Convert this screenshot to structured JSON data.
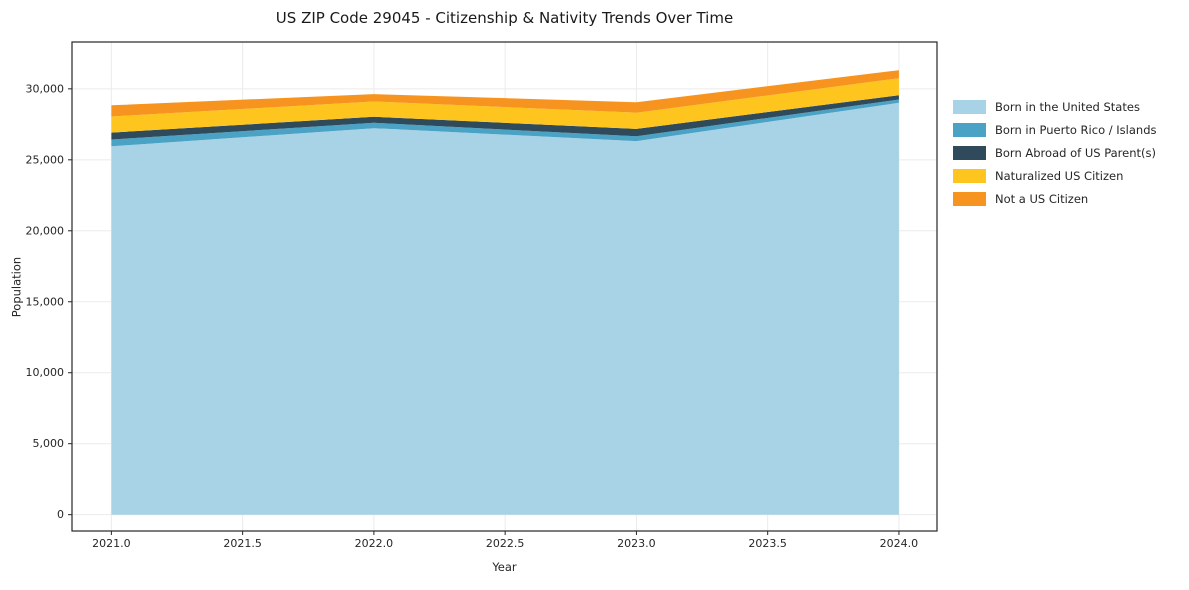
{
  "chart_data": {
    "type": "area",
    "stacked": true,
    "title": "US ZIP Code 29045 - Citizenship & Nativity Trends Over Time",
    "xlabel": "Year",
    "ylabel": "Population",
    "x": [
      2021.0,
      2022.0,
      2023.0,
      2024.0
    ],
    "xlim": [
      2020.85,
      2024.145
    ],
    "ylim": [
      -1150,
      33300
    ],
    "xtick_values": [
      2021.0,
      2021.5,
      2022.0,
      2022.5,
      2023.0,
      2023.5,
      2024.0
    ],
    "xtick_labels": [
      "2021.0",
      "2021.5",
      "2022.0",
      "2022.5",
      "2023.0",
      "2023.5",
      "2024.0"
    ],
    "ytick_values": [
      0,
      5000,
      10000,
      15000,
      20000,
      25000,
      30000
    ],
    "ytick_labels": [
      "0",
      "5,000",
      "10,000",
      "15,000",
      "20,000",
      "25,000",
      "30,000"
    ],
    "grid": true,
    "legend_position": "right-outside",
    "series": [
      {
        "name": "Born in the United States",
        "color": "#a8d3e6",
        "values": [
          25950,
          27230,
          26320,
          29020
        ]
      },
      {
        "name": "Born in Puerto Rico / Islands",
        "color": "#4aa2c4",
        "values": [
          480,
          380,
          340,
          230
        ]
      },
      {
        "name": "Born Abroad of US Parent(s)",
        "color": "#2e4a5b",
        "values": [
          490,
          420,
          520,
          300
        ]
      },
      {
        "name": "Naturalized US Citizen",
        "color": "#ffc51f",
        "values": [
          1130,
          1080,
          1140,
          1200
        ]
      },
      {
        "name": "Not a US Citizen",
        "color": "#f79420",
        "values": [
          790,
          520,
          740,
          560
        ]
      }
    ]
  },
  "colors": {
    "background": "#ffffff",
    "grid": "#ebebeb",
    "spine": "#262626",
    "text": "#262626"
  }
}
